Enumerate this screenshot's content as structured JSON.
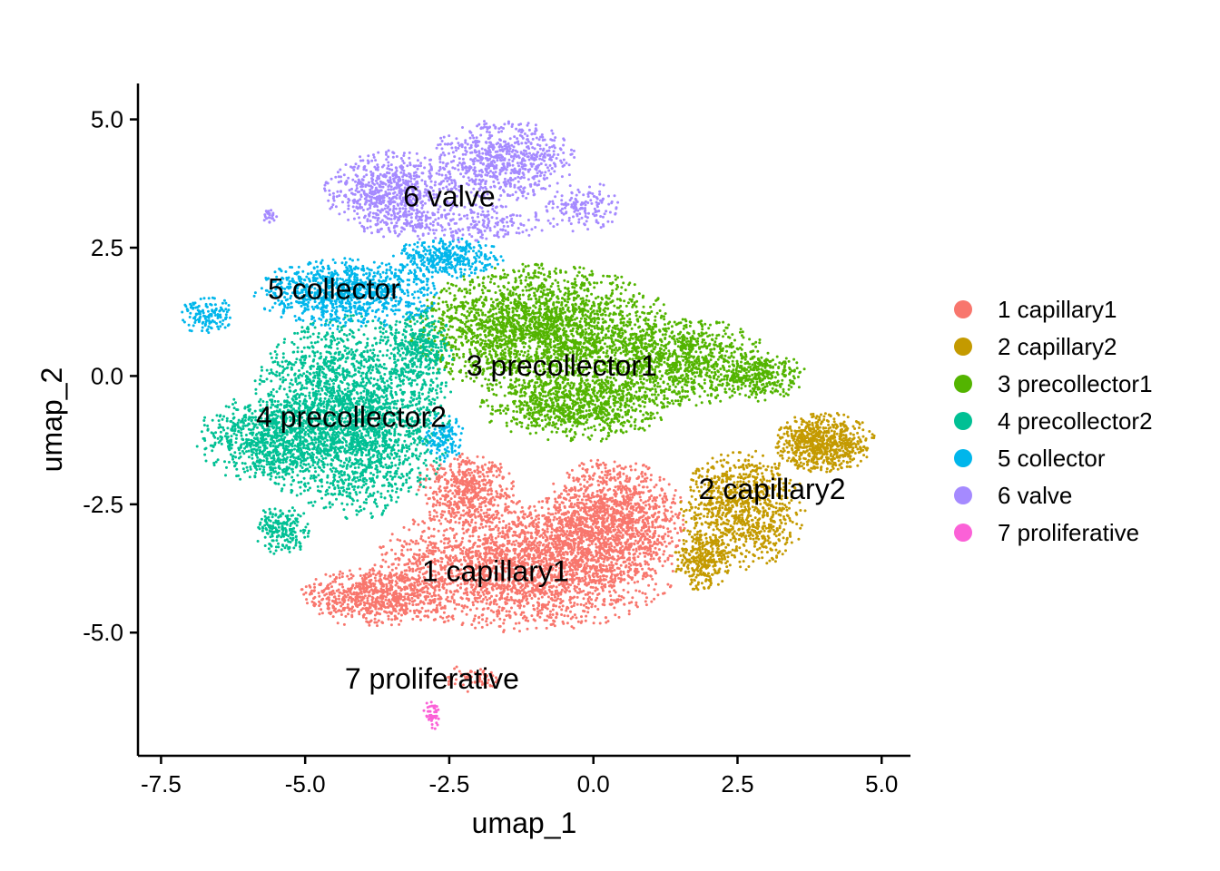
{
  "chart_data": {
    "type": "scatter",
    "xlabel": "umap_1",
    "ylabel": "umap_2",
    "xlim": [
      -7.9,
      5.5
    ],
    "ylim": [
      -7.4,
      5.7
    ],
    "x_ticks": [
      -7.5,
      -5.0,
      -2.5,
      0.0,
      2.5,
      5.0
    ],
    "x_tick_labels": [
      "-7.5",
      "-5.0",
      "-2.5",
      "0.0",
      "2.5",
      "5.0"
    ],
    "y_ticks": [
      -5.0,
      -2.5,
      0.0,
      2.5,
      5.0
    ],
    "y_tick_labels": [
      "-5.0",
      "-2.5",
      "0.0",
      "2.5",
      "5.0"
    ],
    "grid": false,
    "legend_position": "right",
    "series": [
      {
        "name": "1 capillary1",
        "color": "#F8766D",
        "label_at": [
          -1.7,
          -3.8
        ],
        "regions": [
          {
            "cx": -1.2,
            "cy": -3.7,
            "rx": 2.7,
            "ry": 1.3,
            "n": 2600
          },
          {
            "cx": 0.3,
            "cy": -2.8,
            "rx": 1.3,
            "ry": 1.2,
            "n": 1300
          },
          {
            "cx": -3.8,
            "cy": -4.3,
            "rx": 1.3,
            "ry": 0.6,
            "n": 700
          },
          {
            "cx": -2.2,
            "cy": -2.2,
            "rx": 0.9,
            "ry": 0.7,
            "n": 500
          },
          {
            "cx": -2.1,
            "cy": -5.9,
            "rx": 0.5,
            "ry": 0.3,
            "n": 60
          }
        ]
      },
      {
        "name": "2 capillary2",
        "color": "#C49A00",
        "label_at": [
          3.1,
          -2.2
        ],
        "regions": [
          {
            "cx": 2.6,
            "cy": -2.6,
            "rx": 1.1,
            "ry": 1.2,
            "n": 900
          },
          {
            "cx": 4.0,
            "cy": -1.3,
            "rx": 0.9,
            "ry": 0.6,
            "n": 700
          },
          {
            "cx": 1.9,
            "cy": -3.6,
            "rx": 0.5,
            "ry": 0.6,
            "n": 300
          }
        ]
      },
      {
        "name": "3 precollector1",
        "color": "#53B400",
        "label_at": [
          -0.55,
          0.2
        ],
        "regions": [
          {
            "cx": -0.9,
            "cy": 0.9,
            "rx": 2.3,
            "ry": 1.3,
            "n": 2400
          },
          {
            "cx": 1.5,
            "cy": 0.3,
            "rx": 1.6,
            "ry": 0.9,
            "n": 1000
          },
          {
            "cx": -0.3,
            "cy": -0.6,
            "rx": 1.7,
            "ry": 0.7,
            "n": 900
          },
          {
            "cx": 2.9,
            "cy": 0.0,
            "rx": 0.8,
            "ry": 0.5,
            "n": 300
          }
        ]
      },
      {
        "name": "4 precollector2",
        "color": "#00C094",
        "label_at": [
          -4.2,
          -0.8
        ],
        "regions": [
          {
            "cx": -4.2,
            "cy": -0.8,
            "rx": 1.8,
            "ry": 2.0,
            "n": 2700
          },
          {
            "cx": -5.7,
            "cy": -1.2,
            "rx": 1.2,
            "ry": 0.9,
            "n": 700
          },
          {
            "cx": -3.0,
            "cy": 0.6,
            "rx": 0.6,
            "ry": 0.8,
            "n": 300
          },
          {
            "cx": -5.4,
            "cy": -3.0,
            "rx": 0.5,
            "ry": 0.5,
            "n": 200
          }
        ]
      },
      {
        "name": "5 collector",
        "color": "#00B6EB",
        "label_at": [
          -4.5,
          1.7
        ],
        "regions": [
          {
            "cx": -4.3,
            "cy": 1.6,
            "rx": 1.6,
            "ry": 0.7,
            "n": 1000
          },
          {
            "cx": -2.5,
            "cy": 2.3,
            "rx": 1.0,
            "ry": 0.4,
            "n": 350
          },
          {
            "cx": -6.7,
            "cy": 1.2,
            "rx": 0.5,
            "ry": 0.4,
            "n": 130
          },
          {
            "cx": -2.6,
            "cy": -1.2,
            "rx": 0.4,
            "ry": 0.5,
            "n": 120
          }
        ]
      },
      {
        "name": "6 valve",
        "color": "#A58AFF",
        "label_at": [
          -2.5,
          3.5
        ],
        "regions": [
          {
            "cx": -1.6,
            "cy": 4.2,
            "rx": 1.3,
            "ry": 0.8,
            "n": 700
          },
          {
            "cx": -3.5,
            "cy": 3.6,
            "rx": 1.2,
            "ry": 0.8,
            "n": 700
          },
          {
            "cx": -2.4,
            "cy": 3.0,
            "rx": 1.8,
            "ry": 0.4,
            "n": 300
          },
          {
            "cx": -0.2,
            "cy": 3.3,
            "rx": 0.7,
            "ry": 0.5,
            "n": 150
          },
          {
            "cx": -5.6,
            "cy": 3.1,
            "rx": 0.15,
            "ry": 0.15,
            "n": 25
          }
        ]
      },
      {
        "name": "7 proliferative",
        "color": "#FB61D7",
        "label_at": [
          -2.8,
          -5.9
        ],
        "regions": [
          {
            "cx": -2.8,
            "cy": -6.6,
            "rx": 0.15,
            "ry": 0.3,
            "n": 45
          }
        ]
      }
    ]
  }
}
